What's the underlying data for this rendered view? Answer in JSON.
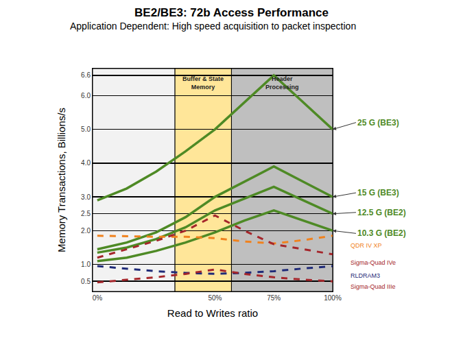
{
  "chart_data": {
    "type": "line",
    "title": "BE2/BE3: 72b Access Performance",
    "subtitle": "Application Dependent: High speed acquisition to packet inspection",
    "x_label": "Read to Writes ratio",
    "y_label": "Memory Transactions, Billions/s",
    "x": [
      0,
      12.5,
      25,
      37.5,
      50,
      62.5,
      75,
      87.5,
      100
    ],
    "xlim": [
      -2,
      100
    ],
    "xticks": [
      {
        "value": 0,
        "label": "0%"
      },
      {
        "value": 50,
        "label": "50%"
      },
      {
        "value": 75,
        "label": "75%"
      },
      {
        "value": 100,
        "label": "100%"
      }
    ],
    "ylim": [
      0.2,
      6.8
    ],
    "yticks": [
      0.5,
      {
        "value": 1,
        "label": "1.0"
      },
      {
        "value": 2,
        "label": "2.0"
      },
      2.5,
      {
        "value": 3,
        "label": "3.0"
      },
      {
        "value": 4,
        "label": "4.0"
      },
      {
        "value": 5,
        "label": "5.0"
      },
      {
        "value": 6,
        "label": "6.0"
      },
      6.6
    ],
    "grid": true,
    "regions": [
      {
        "x0": -2,
        "x1": 33,
        "color": "#f2f2f2"
      },
      {
        "label": "Buffer & State Memory",
        "x0": 33,
        "x1": 57,
        "color": "#ffe699"
      },
      {
        "label": "Header Processing",
        "x0": 57,
        "x1": 100,
        "color": "#bfbfbf"
      }
    ],
    "series": [
      {
        "name": "25 G (BE3)",
        "color": "#4e8a25",
        "line_style": "solid",
        "values": [
          2.9,
          3.25,
          3.75,
          4.35,
          5.0,
          5.8,
          6.6,
          5.8,
          5.0
        ]
      },
      {
        "name": "15 G (BE3)",
        "color": "#4e8a25",
        "line_style": "solid",
        "values": [
          1.45,
          1.65,
          1.95,
          2.4,
          3.0,
          3.45,
          3.9,
          3.45,
          3.0
        ]
      },
      {
        "name": "12.5 G (BE2)",
        "color": "#4e8a25",
        "line_style": "solid",
        "values": [
          1.35,
          1.5,
          1.75,
          2.1,
          2.6,
          2.95,
          3.3,
          2.9,
          2.5
        ]
      },
      {
        "name": "10.3 G (BE2)",
        "color": "#4e8a25",
        "line_style": "solid",
        "values": [
          1.1,
          1.2,
          1.4,
          1.65,
          1.95,
          2.3,
          2.6,
          2.3,
          2.0
        ]
      },
      {
        "name": "QDR IV XP",
        "color": "#f0821e",
        "line_style": "dash",
        "values": [
          1.85,
          1.83,
          1.82,
          1.82,
          1.78,
          1.68,
          1.62,
          1.72,
          1.85
        ]
      },
      {
        "name": "Sigma-Quad IVe",
        "color": "#a5262b",
        "line_style": "dash",
        "values": [
          1.2,
          1.45,
          1.7,
          2.0,
          2.45,
          2.0,
          1.6,
          1.45,
          1.3
        ]
      },
      {
        "name": "RLDRAM3",
        "color": "#1f2a78",
        "line_style": "dash",
        "values": [
          0.95,
          0.88,
          0.8,
          0.75,
          0.72,
          0.75,
          0.8,
          0.88,
          0.95
        ]
      },
      {
        "name": "Sigma-Quad IIIe",
        "color": "#a5262b",
        "line_style": "dash",
        "values": [
          0.47,
          0.55,
          0.62,
          0.72,
          0.85,
          0.72,
          0.62,
          0.55,
          0.5
        ]
      }
    ]
  }
}
